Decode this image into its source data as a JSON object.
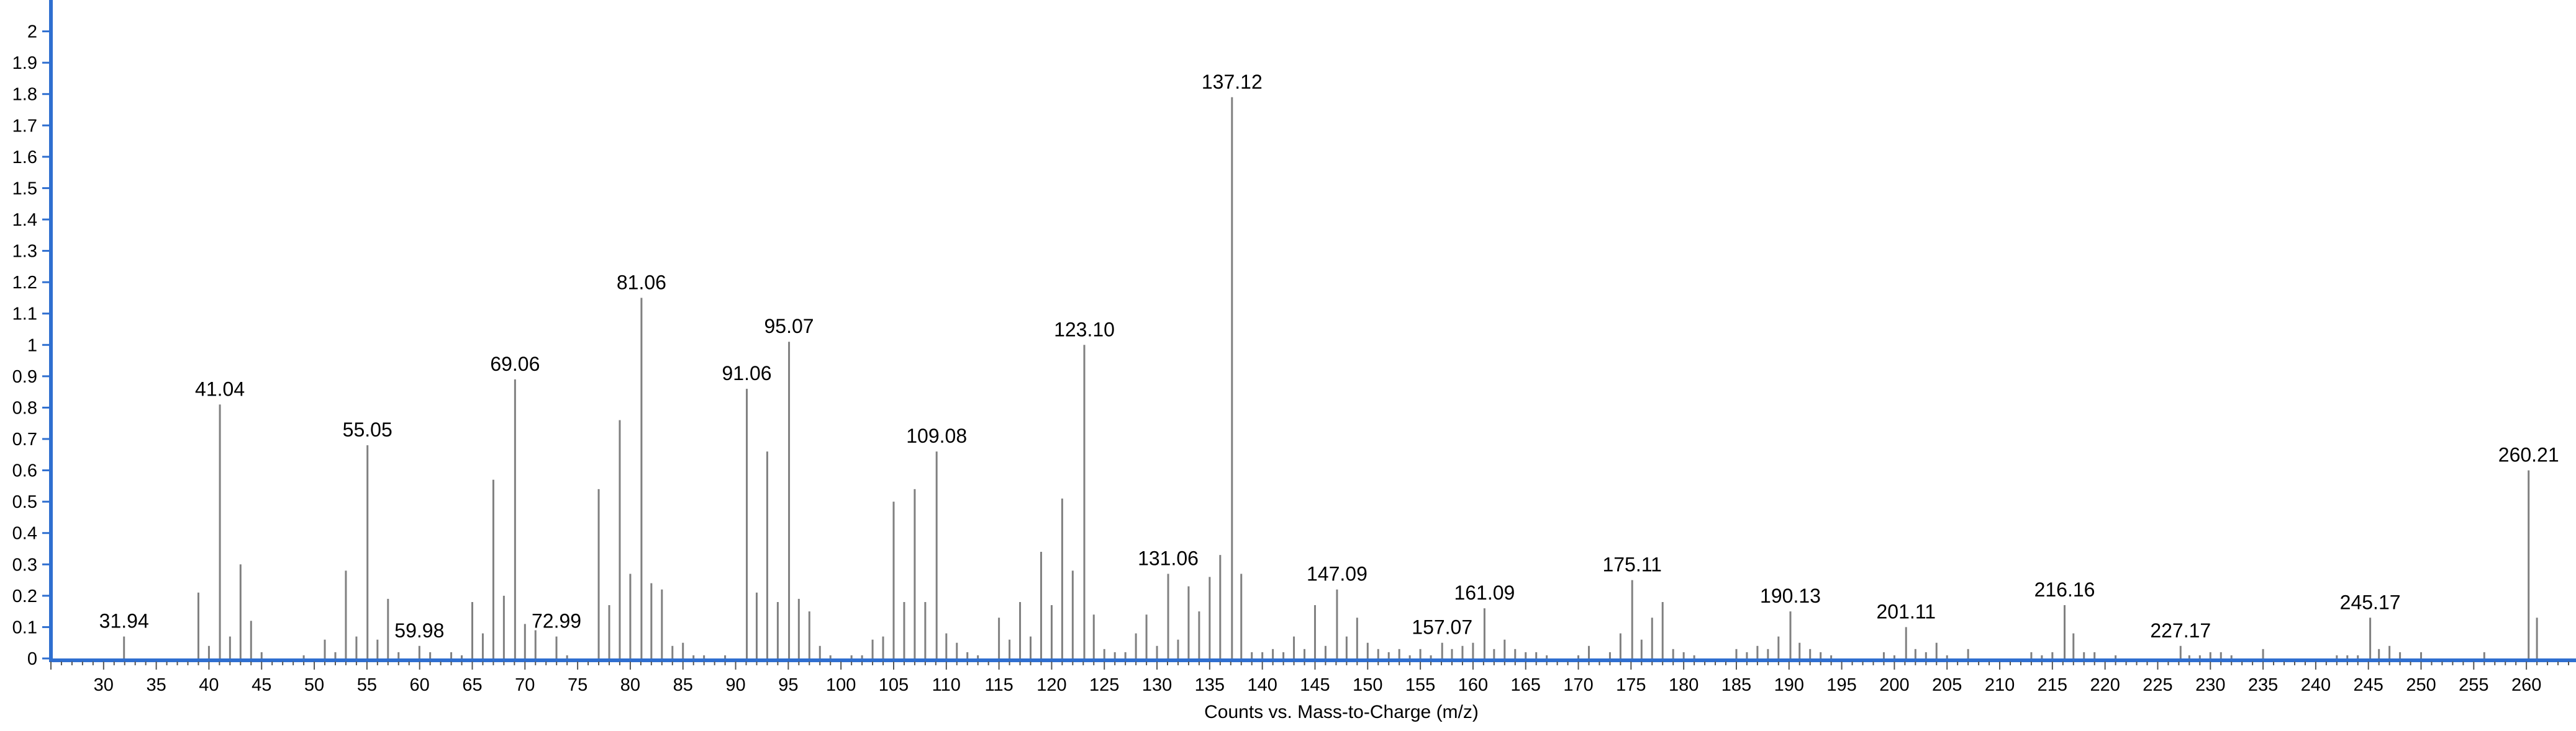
{
  "chart_data": {
    "type": "bar",
    "title": "",
    "xlabel": "Counts vs. Mass-to-Charge (m/z)",
    "ylabel": "",
    "xlim": [
      25,
      264
    ],
    "ylim": [
      0,
      2.1
    ],
    "x_ticks": [
      30,
      35,
      40,
      45,
      50,
      55,
      60,
      65,
      70,
      75,
      80,
      85,
      90,
      95,
      100,
      105,
      110,
      115,
      120,
      125,
      130,
      135,
      140,
      145,
      150,
      155,
      160,
      165,
      170,
      175,
      180,
      185,
      190,
      195,
      200,
      205,
      210,
      215,
      220,
      225,
      230,
      235,
      240,
      245,
      250,
      255,
      260
    ],
    "y_ticks": [
      "0",
      "0.1",
      "0.2",
      "0.3",
      "0.4",
      "0.5",
      "0.6",
      "0.7",
      "0.8",
      "0.9",
      "1",
      "1.1",
      "1.2",
      "1.3",
      "1.4",
      "1.5",
      "1.6",
      "1.7",
      "1.8",
      "1.9",
      "2"
    ],
    "grid": false,
    "colors": {
      "stick": "#808080",
      "axis": "#2f6fd0",
      "text": "#000000"
    },
    "annotations": [
      {
        "x": 31.94,
        "y": 0.07,
        "text": "31.94"
      },
      {
        "x": 41.04,
        "y": 0.81,
        "text": "41.04"
      },
      {
        "x": 55.05,
        "y": 0.68,
        "text": "55.05"
      },
      {
        "x": 59.98,
        "y": 0.04,
        "text": "59.98"
      },
      {
        "x": 69.06,
        "y": 0.89,
        "text": "69.06"
      },
      {
        "x": 72.99,
        "y": 0.07,
        "text": "72.99"
      },
      {
        "x": 81.06,
        "y": 1.15,
        "text": "81.06"
      },
      {
        "x": 91.06,
        "y": 0.86,
        "text": "91.06"
      },
      {
        "x": 95.07,
        "y": 1.01,
        "text": "95.07"
      },
      {
        "x": 109.08,
        "y": 0.66,
        "text": "109.08"
      },
      {
        "x": 123.1,
        "y": 1.0,
        "text": "123.10"
      },
      {
        "x": 131.06,
        "y": 0.27,
        "text": "131.06"
      },
      {
        "x": 137.12,
        "y": 1.79,
        "text": "137.12"
      },
      {
        "x": 147.09,
        "y": 0.22,
        "text": "147.09"
      },
      {
        "x": 157.07,
        "y": 0.05,
        "text": "157.07"
      },
      {
        "x": 161.09,
        "y": 0.16,
        "text": "161.09"
      },
      {
        "x": 175.11,
        "y": 0.25,
        "text": "175.11"
      },
      {
        "x": 190.13,
        "y": 0.15,
        "text": "190.13"
      },
      {
        "x": 201.11,
        "y": 0.1,
        "text": "201.11"
      },
      {
        "x": 216.16,
        "y": 0.17,
        "text": "216.16"
      },
      {
        "x": 227.17,
        "y": 0.04,
        "text": "227.17"
      },
      {
        "x": 245.17,
        "y": 0.13,
        "text": "245.17"
      },
      {
        "x": 260.21,
        "y": 0.6,
        "text": "260.21"
      }
    ],
    "x": [
      31.94,
      39,
      40,
      41.04,
      42,
      43,
      44,
      45,
      49,
      51,
      52,
      53,
      54,
      55.05,
      56,
      57,
      58,
      59.98,
      61,
      63,
      64,
      65,
      66,
      67,
      68,
      69.06,
      70,
      71,
      72.99,
      74,
      77,
      78,
      79,
      80,
      81.06,
      82,
      83,
      84,
      85,
      86,
      87,
      89,
      91.06,
      92,
      93,
      94,
      95.07,
      96,
      97,
      98,
      99,
      101,
      102,
      103,
      104,
      105,
      106,
      107,
      108,
      109.08,
      110,
      111,
      112,
      113,
      115,
      116,
      117,
      118,
      119,
      120,
      121,
      122,
      123.1,
      124,
      125,
      126,
      127,
      128,
      129,
      130,
      131.06,
      132,
      133,
      134,
      135,
      136,
      137.12,
      138,
      139,
      140,
      141,
      142,
      143,
      144,
      145,
      146,
      147.09,
      148,
      149,
      150,
      151,
      152,
      153,
      154,
      155,
      156,
      157.07,
      158,
      159,
      160,
      161.09,
      162,
      163,
      164,
      165,
      166,
      167,
      170,
      171,
      173,
      174,
      175.11,
      176,
      177,
      178,
      179,
      180,
      181,
      185,
      186,
      187,
      188,
      189,
      190.13,
      191,
      192,
      193,
      194,
      199,
      200,
      201.11,
      202,
      203,
      204,
      205,
      207,
      213,
      214,
      215,
      216.16,
      217,
      218,
      219,
      221,
      227.17,
      228,
      229,
      230,
      231,
      232,
      235,
      242,
      243,
      244,
      245.17,
      246,
      247,
      248,
      250,
      256,
      260.21,
      261
    ],
    "values": [
      0.07,
      0.21,
      0.04,
      0.81,
      0.07,
      0.3,
      0.12,
      0.02,
      0.01,
      0.06,
      0.02,
      0.28,
      0.07,
      0.68,
      0.06,
      0.19,
      0.02,
      0.04,
      0.02,
      0.02,
      0.01,
      0.18,
      0.08,
      0.57,
      0.2,
      0.89,
      0.11,
      0.09,
      0.07,
      0.01,
      0.54,
      0.17,
      0.76,
      0.27,
      1.15,
      0.24,
      0.22,
      0.04,
      0.05,
      0.01,
      0.01,
      0.01,
      0.86,
      0.21,
      0.66,
      0.18,
      1.01,
      0.19,
      0.15,
      0.04,
      0.01,
      0.01,
      0.01,
      0.06,
      0.07,
      0.5,
      0.18,
      0.54,
      0.18,
      0.66,
      0.08,
      0.05,
      0.02,
      0.01,
      0.13,
      0.06,
      0.18,
      0.07,
      0.34,
      0.17,
      0.51,
      0.28,
      1.0,
      0.14,
      0.03,
      0.02,
      0.02,
      0.08,
      0.14,
      0.04,
      0.27,
      0.06,
      0.23,
      0.15,
      0.26,
      0.33,
      1.79,
      0.27,
      0.02,
      0.02,
      0.03,
      0.02,
      0.07,
      0.03,
      0.17,
      0.04,
      0.22,
      0.07,
      0.13,
      0.05,
      0.03,
      0.02,
      0.03,
      0.01,
      0.03,
      0.01,
      0.05,
      0.03,
      0.04,
      0.05,
      0.16,
      0.03,
      0.06,
      0.03,
      0.02,
      0.02,
      0.01,
      0.01,
      0.04,
      0.02,
      0.08,
      0.25,
      0.06,
      0.13,
      0.18,
      0.03,
      0.02,
      0.01,
      0.03,
      0.02,
      0.04,
      0.03,
      0.07,
      0.15,
      0.05,
      0.03,
      0.02,
      0.01,
      0.02,
      0.01,
      0.1,
      0.03,
      0.02,
      0.05,
      0.01,
      0.03,
      0.02,
      0.01,
      0.02,
      0.17,
      0.08,
      0.02,
      0.02,
      0.01,
      0.04,
      0.01,
      0.01,
      0.02,
      0.02,
      0.01,
      0.03,
      0.01,
      0.01,
      0.01,
      0.13,
      0.03,
      0.04,
      0.02,
      0.02,
      0.02,
      0.6,
      0.13
    ]
  }
}
